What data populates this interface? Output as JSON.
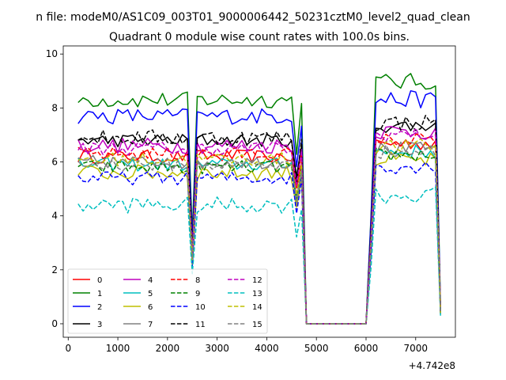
{
  "chart_data": {
    "type": "line",
    "suptitle": "n file: modeM0/AS1C09_003T01_9000006442_50231cztM0_level2_quad_clean",
    "title": "Quadrant 0 module wise count rates with 100.0s bins.",
    "xlabel": "",
    "ylabel": "",
    "x_offset_label": "+4.742e8",
    "xlim": [
      -100,
      7800
    ],
    "ylim": [
      -0.5,
      10.3
    ],
    "xticks": [
      0,
      1000,
      2000,
      3000,
      4000,
      5000,
      6000,
      7000
    ],
    "xtick_labels": [
      "0",
      "1000",
      "2000",
      "3000",
      "4000",
      "5000",
      "6000",
      "7000"
    ],
    "yticks": [
      0,
      2,
      4,
      6,
      8,
      10
    ],
    "ytick_labels": [
      "0",
      "2",
      "4",
      "6",
      "8",
      "10"
    ],
    "legend_position": "lower-left",
    "legend_columns": 4,
    "series": [
      {
        "name": "0",
        "color": "#ff0000",
        "dashed": false,
        "base": 6.2,
        "amp": 0.25
      },
      {
        "name": "1",
        "color": "#008000",
        "dashed": false,
        "base": 8.3,
        "amp": 0.3
      },
      {
        "name": "2",
        "color": "#0000ff",
        "dashed": false,
        "base": 7.7,
        "amp": 0.3
      },
      {
        "name": "3",
        "color": "#000000",
        "dashed": false,
        "base": 6.8,
        "amp": 0.25
      },
      {
        "name": "4",
        "color": "#bf00bf",
        "dashed": false,
        "base": 6.6,
        "amp": 0.3
      },
      {
        "name": "5",
        "color": "#00bfbf",
        "dashed": false,
        "base": 5.9,
        "amp": 0.25
      },
      {
        "name": "6",
        "color": "#bfbf00",
        "dashed": false,
        "base": 5.6,
        "amp": 0.3
      },
      {
        "name": "7",
        "color": "#808080",
        "dashed": false,
        "base": 6.0,
        "amp": 0.25
      },
      {
        "name": "8",
        "color": "#ff0000",
        "dashed": true,
        "base": 6.3,
        "amp": 0.25
      },
      {
        "name": "9",
        "color": "#008000",
        "dashed": true,
        "base": 5.8,
        "amp": 0.25
      },
      {
        "name": "10",
        "color": "#0000ff",
        "dashed": true,
        "base": 5.4,
        "amp": 0.25
      },
      {
        "name": "11",
        "color": "#000000",
        "dashed": true,
        "base": 6.9,
        "amp": 0.3
      },
      {
        "name": "12",
        "color": "#bf00bf",
        "dashed": true,
        "base": 6.5,
        "amp": 0.25
      },
      {
        "name": "13",
        "color": "#00bfbf",
        "dashed": true,
        "base": 4.4,
        "amp": 0.3
      },
      {
        "name": "14",
        "color": "#bfbf00",
        "dashed": true,
        "base": 6.1,
        "amp": 0.25
      },
      {
        "name": "15",
        "color": "#808080",
        "dashed": true,
        "base": 5.9,
        "amp": 0.25
      }
    ],
    "time_profile": {
      "segments": [
        {
          "x_start": 200,
          "x_end": 2400,
          "level": 1.0
        },
        {
          "x": 2500,
          "level": 0.4
        },
        {
          "x_start": 2600,
          "x_end": 4500,
          "level": 1.0
        },
        {
          "x": 4600,
          "level": 0.78
        },
        {
          "x": 4700,
          "level": 0.97
        },
        {
          "x_start": 5000,
          "x_end": 6000,
          "level": 0.0
        },
        {
          "x_start": 6200,
          "x_end": 7400,
          "level": 1.08
        },
        {
          "x": 7500,
          "level": 0.07
        }
      ],
      "note": "each series value = series.base * level + jitter(series.amp); flat 0 in the 5000-6000 gap"
    }
  }
}
